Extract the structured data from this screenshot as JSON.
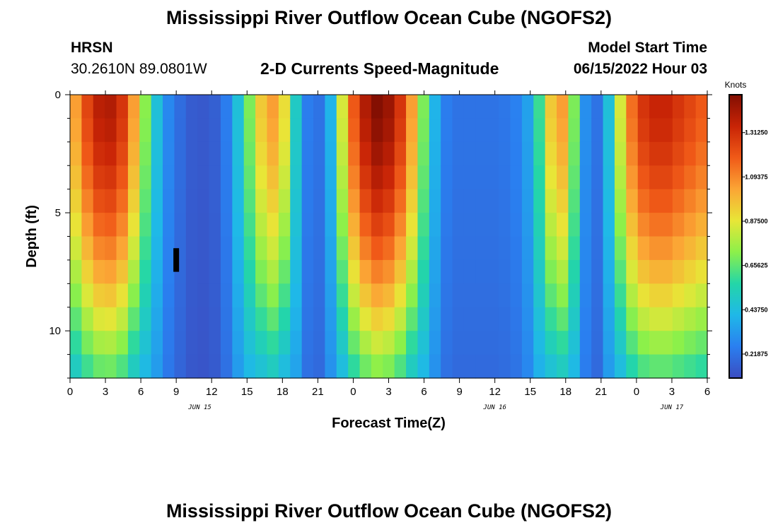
{
  "header": {
    "title": "Mississippi River Outflow Ocean Cube (NGOFS2)",
    "station_code": "HRSN",
    "station_coords": "30.2610N  89.0801W",
    "plot_title": "2-D Currents Speed-Magnitude",
    "start_label": "Model Start Time",
    "start_value": "06/15/2022 Hour 03"
  },
  "footer": {
    "title": "Mississippi River Outflow Ocean Cube (NGOFS2)"
  },
  "chart_data": {
    "type": "heatmap",
    "title": "2-D Currents Speed-Magnitude",
    "xlabel": "Forecast Time(Z)",
    "ylabel": "Depth (ft)",
    "x_range_hours": [
      0,
      54
    ],
    "y_range_ft": [
      0,
      12
    ],
    "y_inverted": true,
    "x_tick_labels": [
      "0",
      "3",
      "6",
      "9",
      "12",
      "15",
      "18",
      "21",
      "0",
      "3",
      "6",
      "9",
      "12",
      "15",
      "18",
      "21",
      "0",
      "3",
      "6"
    ],
    "y_tick_labels": [
      "0",
      "5",
      "10"
    ],
    "date_labels": [
      {
        "label": "JUN 15",
        "hour": 11
      },
      {
        "label": "JUN 16",
        "hour": 36
      },
      {
        "label": "JUN 17",
        "hour": 51
      }
    ],
    "colorbar": {
      "unit": "Knots",
      "min": 0.1,
      "max": 1.5,
      "tick_labels": [
        "1.31250",
        "1.09375",
        "0.87500",
        "0.65625",
        "0.43750",
        "0.21875"
      ],
      "tick_values": [
        1.3125,
        1.09375,
        0.875,
        0.65625,
        0.4375,
        0.21875
      ],
      "colors": [
        "#3b4cc0",
        "#2a7ff0",
        "#1fb8e8",
        "#23d6a8",
        "#8cf04a",
        "#e8e637",
        "#fba535",
        "#f05a18",
        "#c82406",
        "#820e02"
      ]
    },
    "marker": {
      "hour": 9,
      "depth_start": 6.5,
      "depth_end": 7.5
    },
    "depths_ft": [
      0.5,
      1.5,
      2.5,
      3.5,
      4.5,
      5.5,
      6.5,
      7.5,
      8.5,
      9.5,
      10.5,
      11.5
    ],
    "speed_profile_hours": [
      0,
      1,
      2,
      3,
      4,
      5,
      6,
      7,
      8,
      9,
      10,
      11,
      12,
      13,
      14,
      15,
      16,
      17,
      18,
      19,
      20,
      21,
      22,
      23,
      24,
      25,
      26,
      27,
      28,
      29,
      30,
      31,
      32,
      33,
      34,
      35,
      36,
      37,
      38,
      39,
      40,
      41,
      42,
      43,
      44,
      45,
      46,
      47,
      48,
      49,
      50,
      51,
      52,
      53,
      54
    ],
    "speed_profile_knots": [
      1.05,
      1.25,
      1.38,
      1.4,
      1.3,
      1.05,
      0.72,
      0.45,
      0.28,
      0.2,
      0.15,
      0.14,
      0.16,
      0.25,
      0.45,
      0.7,
      0.95,
      1.05,
      0.9,
      0.5,
      0.25,
      0.22,
      0.4,
      0.85,
      1.2,
      1.4,
      1.5,
      1.45,
      1.3,
      1.05,
      0.7,
      0.4,
      0.25,
      0.22,
      0.22,
      0.22,
      0.22,
      0.23,
      0.26,
      0.35,
      0.6,
      0.95,
      1.05,
      0.7,
      0.3,
      0.22,
      0.45,
      0.85,
      1.15,
      1.3,
      1.35,
      1.35,
      1.3,
      1.25,
      1.2
    ]
  }
}
